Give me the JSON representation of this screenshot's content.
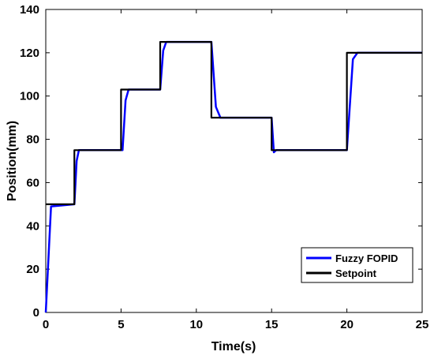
{
  "chart_data": {
    "type": "line",
    "xlabel": "Time(s)",
    "ylabel": "Position(mm)",
    "xlim": [
      0,
      25
    ],
    "ylim": [
      0,
      140
    ],
    "xticks": [
      0,
      5,
      10,
      15,
      20,
      25
    ],
    "yticks": [
      0,
      20,
      40,
      60,
      80,
      100,
      120,
      140
    ],
    "grid": false,
    "legend_position": "bottom-right",
    "series": [
      {
        "name": "Fuzzy FOPID",
        "color": "#0000ff",
        "x": [
          0,
          0.35,
          1.9,
          2.05,
          2.2,
          5.1,
          5.3,
          5.5,
          7.6,
          7.8,
          8.0,
          11.0,
          11.3,
          11.6,
          15.0,
          15.15,
          15.3,
          20.0,
          20.4,
          20.7,
          25
        ],
        "y": [
          0,
          49,
          50,
          70,
          75,
          75,
          98,
          103,
          103,
          121,
          125,
          125,
          95,
          90,
          90,
          74,
          75,
          75,
          117,
          120,
          120
        ]
      },
      {
        "name": "Setpoint",
        "color": "#000000",
        "x": [
          0,
          1.9,
          1.9,
          5.0,
          5.0,
          7.6,
          7.6,
          11.0,
          11.0,
          15.0,
          15.0,
          20.0,
          20.0,
          25
        ],
        "y": [
          50,
          50,
          75,
          75,
          103,
          103,
          125,
          125,
          90,
          90,
          75,
          75,
          120,
          120
        ]
      }
    ]
  }
}
